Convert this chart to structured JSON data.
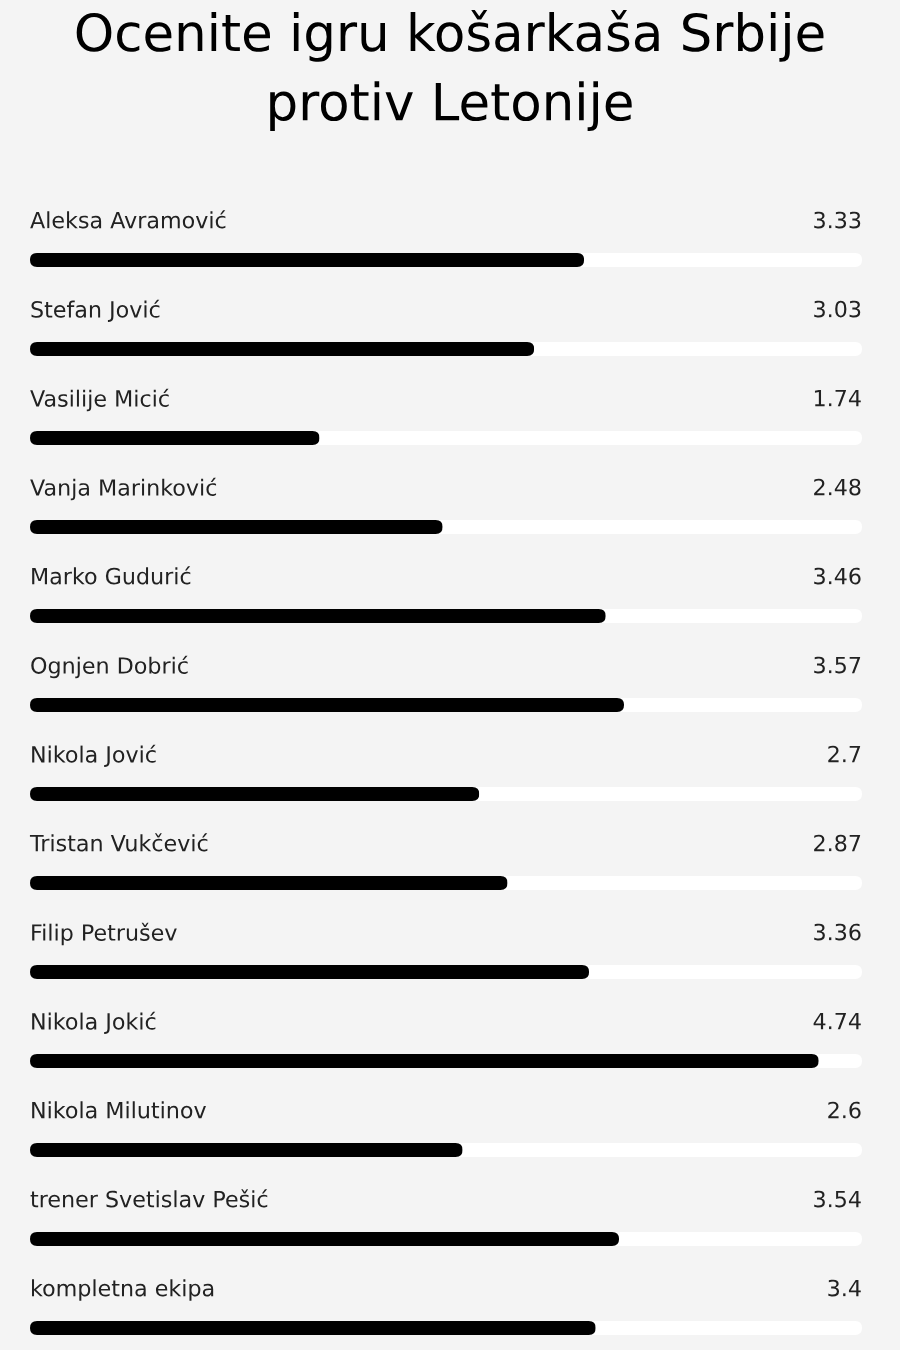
{
  "chart_data": {
    "type": "bar",
    "orientation": "horizontal",
    "title": "Ocenite igru košarkaša Srbije\nprotiv Letonije",
    "categories": [
      "Aleksa Avramović",
      "Stefan Jović",
      "Vasilije Micić",
      "Vanja Marinković",
      "Marko Gudurić",
      "Ognjen Dobrić",
      "Nikola Jović",
      "Tristan Vukčević",
      "Filip Petrušev",
      "Nikola Jokić",
      "Nikola Milutinov",
      "trener Svetislav Pešić",
      "kompletna ekipa"
    ],
    "values": [
      3.33,
      3.03,
      1.74,
      2.48,
      3.46,
      3.57,
      2.7,
      2.87,
      3.36,
      4.74,
      2.6,
      3.54,
      3.4
    ],
    "color": "#000000",
    "xlim": [
      0,
      5
    ],
    "data_labels": true,
    "tick_labels": false
  }
}
